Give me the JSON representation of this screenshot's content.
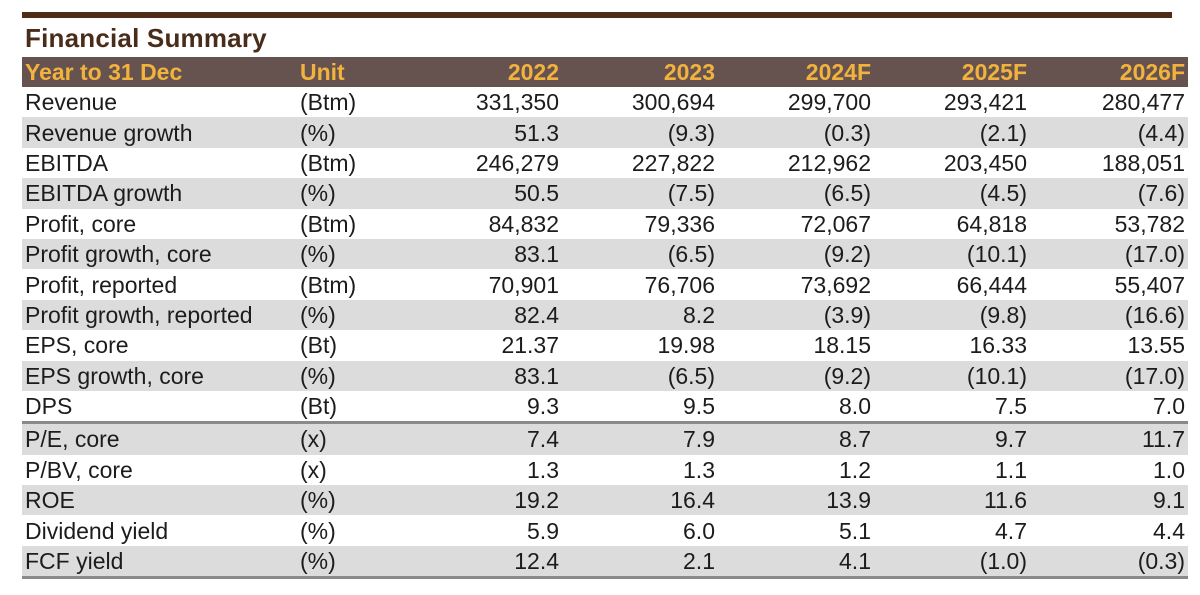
{
  "title": "Financial Summary",
  "colors": {
    "top_bar": "#4f2c18",
    "header_bg": "#665350",
    "header_text": "#f2b33d",
    "shade": "#dcdcdc"
  },
  "header": {
    "label": "Year to 31 Dec",
    "unit": "Unit",
    "years": [
      "2022",
      "2023",
      "2024F",
      "2025F",
      "2026F"
    ]
  },
  "rows": [
    {
      "label": "Revenue",
      "unit": "(Btm)",
      "values": [
        "331,350",
        "300,694",
        "299,700",
        "293,421",
        "280,477"
      ]
    },
    {
      "label": "Revenue growth",
      "unit": "(%)",
      "values": [
        "51.3",
        "(9.3)",
        "(0.3)",
        "(2.1)",
        "(4.4)"
      ]
    },
    {
      "label": "EBITDA",
      "unit": "(Btm)",
      "values": [
        "246,279",
        "227,822",
        "212,962",
        "203,450",
        "188,051"
      ]
    },
    {
      "label": "EBITDA growth",
      "unit": "(%)",
      "values": [
        "50.5",
        "(7.5)",
        "(6.5)",
        "(4.5)",
        "(7.6)"
      ]
    },
    {
      "label": "Profit, core",
      "unit": "(Btm)",
      "values": [
        "84,832",
        "79,336",
        "72,067",
        "64,818",
        "53,782"
      ]
    },
    {
      "label": "Profit growth, core",
      "unit": "(%)",
      "values": [
        "83.1",
        "(6.5)",
        "(9.2)",
        "(10.1)",
        "(17.0)"
      ]
    },
    {
      "label": "Profit, reported",
      "unit": "(Btm)",
      "values": [
        "70,901",
        "76,706",
        "73,692",
        "66,444",
        "55,407"
      ]
    },
    {
      "label": "Profit growth, reported",
      "unit": "(%)",
      "values": [
        "82.4",
        "8.2",
        "(3.9)",
        "(9.8)",
        "(16.6)"
      ]
    },
    {
      "label": "EPS, core",
      "unit": "(Bt)",
      "values": [
        "21.37",
        "19.98",
        "18.15",
        "16.33",
        "13.55"
      ]
    },
    {
      "label": "EPS growth, core",
      "unit": "(%)",
      "values": [
        "83.1",
        "(6.5)",
        "(9.2)",
        "(10.1)",
        "(17.0)"
      ]
    },
    {
      "label": "DPS",
      "unit": "(Bt)",
      "values": [
        "9.3",
        "9.5",
        "8.0",
        "7.5",
        "7.0"
      ]
    },
    {
      "label": "P/E, core",
      "unit": "(x)",
      "values": [
        "7.4",
        "7.9",
        "8.7",
        "9.7",
        "11.7"
      ]
    },
    {
      "label": "P/BV, core",
      "unit": "(x)",
      "values": [
        "1.3",
        "1.3",
        "1.2",
        "1.1",
        "1.0"
      ]
    },
    {
      "label": "ROE",
      "unit": "(%)",
      "values": [
        "19.2",
        "16.4",
        "13.9",
        "11.6",
        "9.1"
      ]
    },
    {
      "label": "Dividend yield",
      "unit": "(%)",
      "values": [
        "5.9",
        "6.0",
        "5.1",
        "4.7",
        "4.4"
      ]
    },
    {
      "label": "FCF yield",
      "unit": "(%)",
      "values": [
        "12.4",
        "2.1",
        "4.1",
        "(1.0)",
        "(0.3)"
      ]
    }
  ]
}
